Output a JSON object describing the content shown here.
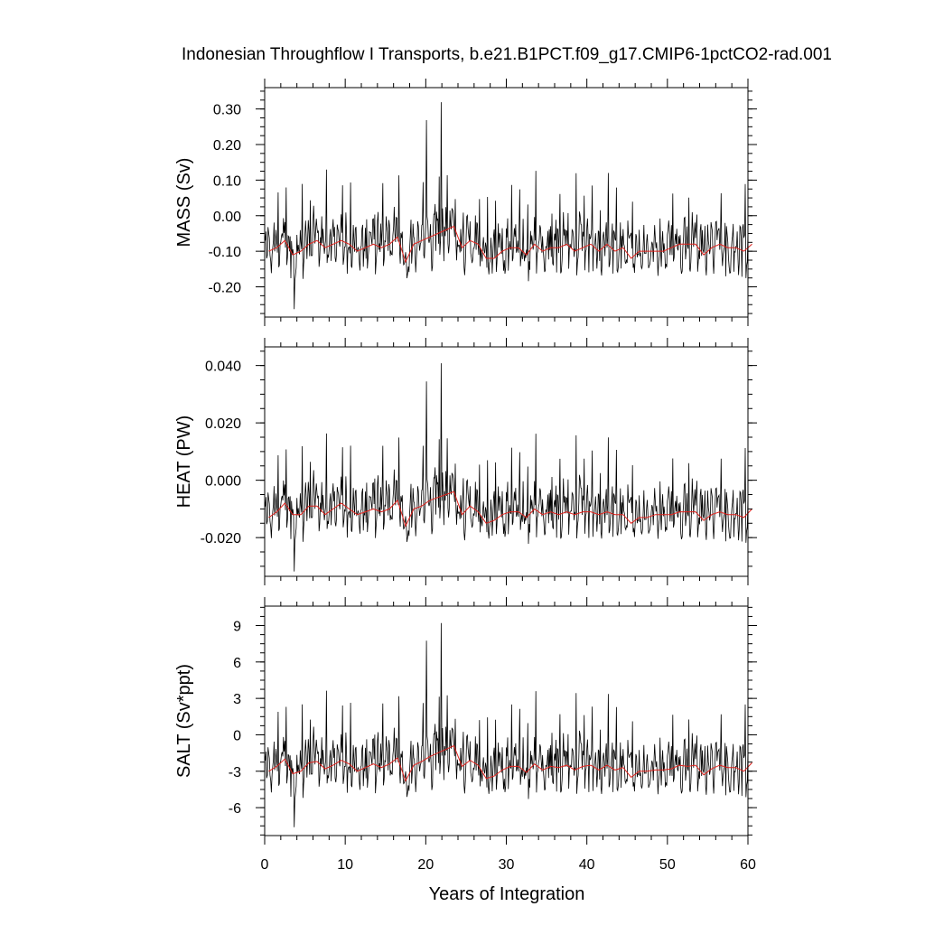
{
  "title": "Indonesian Throughflow I Transports, b.e21.B1PCT.f09_g17.CMIP6-1pctCO2-rad.001",
  "xlabel": "Years of Integration",
  "chart_data": {
    "type": "line",
    "x_range": [
      0,
      60
    ],
    "x_ticks": [
      0,
      10,
      20,
      30,
      40,
      50,
      60
    ],
    "x_tick_labels": [
      "0",
      "10",
      "20",
      "30",
      "40",
      "50",
      "60"
    ],
    "grid": false,
    "legend": "none",
    "colors": {
      "monthly": "#000000",
      "annual_mean": "#e0201b"
    },
    "panels": [
      {
        "ylabel": "MASS (Sv)",
        "ylim": [
          -0.285,
          0.36
        ],
        "y_ticks": [
          0.3,
          0.2,
          0.1,
          0.0,
          -0.1,
          -0.2
        ],
        "y_tick_labels": [
          "0.30",
          "0.20",
          "0.10",
          "0.00",
          "-0.10",
          "-0.20"
        ],
        "annual_mean": [
          -0.1,
          -0.09,
          -0.07,
          -0.11,
          -0.1,
          -0.08,
          -0.07,
          -0.09,
          -0.08,
          -0.07,
          -0.08,
          -0.1,
          -0.09,
          -0.08,
          -0.09,
          -0.08,
          -0.06,
          -0.13,
          -0.08,
          -0.07,
          -0.06,
          -0.05,
          -0.04,
          -0.03,
          -0.09,
          -0.07,
          -0.08,
          -0.12,
          -0.12,
          -0.1,
          -0.09,
          -0.09,
          -0.11,
          -0.08,
          -0.1,
          -0.09,
          -0.09,
          -0.08,
          -0.1,
          -0.09,
          -0.08,
          -0.1,
          -0.08,
          -0.1,
          -0.09,
          -0.12,
          -0.1,
          -0.1,
          -0.1,
          -0.1,
          -0.09,
          -0.08,
          -0.08,
          -0.08,
          -0.11,
          -0.09,
          -0.08,
          -0.09,
          -0.09,
          -0.1,
          -0.08
        ],
        "monthly_peak": 0.36,
        "monthly_trough": -0.28
      },
      {
        "ylabel": "HEAT (PW)",
        "ylim": [
          -0.0335,
          0.0465
        ],
        "y_ticks": [
          0.04,
          0.02,
          0.0,
          -0.02
        ],
        "y_tick_labels": [
          "0.040",
          "0.020",
          "0.000",
          "-0.020"
        ],
        "annual_mean": [
          -0.013,
          -0.011,
          -0.008,
          -0.012,
          -0.012,
          -0.009,
          -0.009,
          -0.012,
          -0.01,
          -0.008,
          -0.01,
          -0.012,
          -0.011,
          -0.01,
          -0.011,
          -0.01,
          -0.007,
          -0.016,
          -0.01,
          -0.009,
          -0.007,
          -0.006,
          -0.005,
          -0.004,
          -0.012,
          -0.009,
          -0.011,
          -0.015,
          -0.014,
          -0.012,
          -0.011,
          -0.011,
          -0.013,
          -0.01,
          -0.012,
          -0.011,
          -0.012,
          -0.011,
          -0.012,
          -0.011,
          -0.011,
          -0.012,
          -0.011,
          -0.012,
          -0.012,
          -0.015,
          -0.013,
          -0.013,
          -0.012,
          -0.012,
          -0.012,
          -0.011,
          -0.011,
          -0.011,
          -0.014,
          -0.012,
          -0.011,
          -0.012,
          -0.012,
          -0.013,
          -0.01
        ],
        "monthly_peak": 0.046,
        "monthly_trough": -0.034
      },
      {
        "ylabel": "SALT (Sv*ppt)",
        "ylim": [
          -8.3,
          10.6
        ],
        "y_ticks": [
          9,
          6,
          3,
          0,
          -3,
          -6
        ],
        "y_tick_labels": [
          "9",
          "6",
          "3",
          "0",
          "-3",
          "-6"
        ],
        "annual_mean": [
          -3.0,
          -2.6,
          -2.0,
          -3.2,
          -3.0,
          -2.3,
          -2.2,
          -2.8,
          -2.5,
          -2.1,
          -2.4,
          -3.0,
          -2.7,
          -2.4,
          -2.7,
          -2.4,
          -1.9,
          -3.8,
          -2.5,
          -2.2,
          -1.8,
          -1.5,
          -1.2,
          -0.9,
          -2.6,
          -2.1,
          -2.5,
          -3.6,
          -3.4,
          -2.9,
          -2.6,
          -2.6,
          -3.1,
          -2.4,
          -2.9,
          -2.6,
          -2.7,
          -2.5,
          -2.9,
          -2.6,
          -2.5,
          -2.9,
          -2.5,
          -2.9,
          -2.7,
          -3.5,
          -3.0,
          -3.0,
          -2.9,
          -2.9,
          -2.8,
          -2.5,
          -2.6,
          -2.5,
          -3.3,
          -2.8,
          -2.5,
          -2.7,
          -2.7,
          -3.0,
          -2.3
        ],
        "monthly_peak": 10.4,
        "monthly_trough": -8.1
      }
    ]
  }
}
